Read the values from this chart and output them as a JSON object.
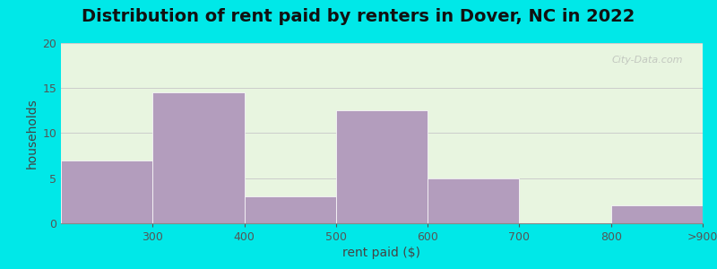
{
  "title": "Distribution of rent paid by renters in Dover, NC in 2022",
  "xlabel": "rent paid ($)",
  "ylabel": "households",
  "categories": [
    "300",
    "400",
    "500",
    "600",
    "700",
    "800",
    ">900"
  ],
  "values": [
    7,
    14.5,
    3,
    12.5,
    5,
    0,
    2
  ],
  "bar_color": "#b39dbd",
  "background_color_top": "#e8f5e0",
  "background_color_bottom": "#f0f8e8",
  "outer_background": "#00e8e8",
  "ylim": [
    0,
    20
  ],
  "yticks": [
    0,
    5,
    10,
    15,
    20
  ],
  "grid_color": "#cccccc",
  "title_fontsize": 14,
  "axis_label_fontsize": 10,
  "tick_fontsize": 9,
  "bar_edges": [
    200,
    300,
    400,
    500,
    600,
    700,
    800,
    900
  ],
  "tick_positions": [
    300,
    400,
    500,
    600,
    700,
    800,
    900
  ],
  "tick_labels": [
    "300",
    "400",
    "500",
    "600",
    "700",
    "800",
    ">900"
  ],
  "xlim": [
    200,
    900
  ]
}
